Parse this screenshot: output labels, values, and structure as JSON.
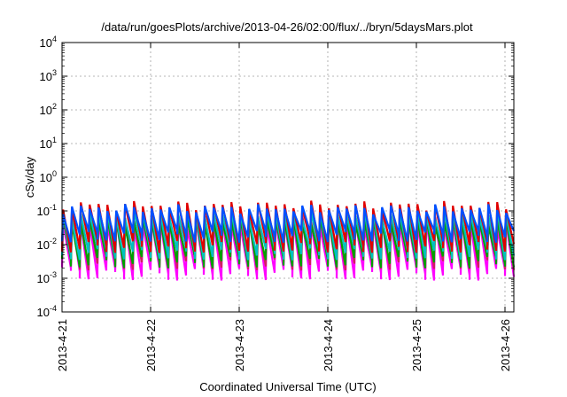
{
  "chart_data": {
    "type": "line",
    "title": "/data/run/goesPlots/archive/2013-04-26/02:00/flux/../bryn/5daysMars.plot",
    "xlabel": "Coordinated Universal Time (UTC)",
    "ylabel": "cSv/day",
    "yscale": "log",
    "ylim": [
      0.0001,
      10000
    ],
    "xlim": [
      "2013-04-21",
      "2013-04-26 02:00"
    ],
    "grid": true,
    "x_ticks": [
      "2013-4-21",
      "2013-4-22",
      "2013-4-23",
      "2013-4-24",
      "2013-4-25",
      "2013-4-26"
    ],
    "y_ticks": [
      {
        "base": "10",
        "exp": "-4"
      },
      {
        "base": "10",
        "exp": "-3"
      },
      {
        "base": "10",
        "exp": "-2"
      },
      {
        "base": "10",
        "exp": "-1"
      },
      {
        "base": "10",
        "exp": "0"
      },
      {
        "base": "10",
        "exp": "1"
      },
      {
        "base": "10",
        "exp": "2"
      },
      {
        "base": "10",
        "exp": "3"
      },
      {
        "base": "10",
        "exp": "4"
      }
    ],
    "pulse_period_hours": 2.4,
    "series": [
      {
        "color": "#ff00ff",
        "peak": 0.045,
        "trough": 0.0015
      },
      {
        "color": "#d02060",
        "peak": 0.07,
        "trough": 0.003
      },
      {
        "color": "#00a000",
        "peak": 0.05,
        "trough": 0.0035
      },
      {
        "color": "#00c0c0",
        "peak": 0.08,
        "trough": 0.006
      },
      {
        "color": "#e00000",
        "peak": 0.15,
        "trough": 0.01
      },
      {
        "color": "#0050ff",
        "peak": 0.12,
        "trough": 0.02
      }
    ]
  }
}
